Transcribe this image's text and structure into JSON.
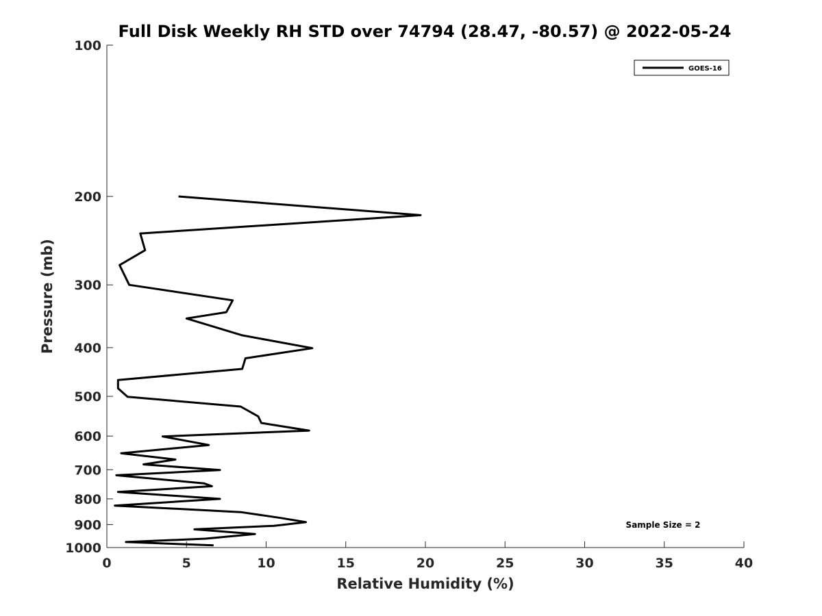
{
  "chart_data": {
    "type": "line",
    "title": "Full Disk Weekly RH STD over 74794 (28.47, -80.57) @ 2022-05-24",
    "xlabel": "Relative Humidity (%)",
    "ylabel": "Pressure (mb)",
    "xlim": [
      0,
      40
    ],
    "ylim": [
      100,
      1000
    ],
    "y_scale": "log",
    "y_reversed": true,
    "grid": false,
    "x_ticks": [
      0,
      5,
      10,
      15,
      20,
      25,
      30,
      35,
      40
    ],
    "y_ticks": [
      100,
      200,
      300,
      400,
      500,
      600,
      700,
      800,
      900,
      1000
    ],
    "x_tick_labels": [
      "0",
      "5",
      "10",
      "15",
      "20",
      "25",
      "30",
      "35",
      "40"
    ],
    "y_tick_labels": [
      "100",
      "200",
      "300",
      "400",
      "500",
      "600",
      "700",
      "800",
      "900",
      "1000"
    ],
    "legend_position": "top-right",
    "annotation": "Sample Size = 2",
    "series": [
      {
        "name": "GOES-16",
        "color": "#000000",
        "points": [
          [
            4.5,
            200
          ],
          [
            19.7,
            218
          ],
          [
            2.1,
            237
          ],
          [
            2.4,
            256
          ],
          [
            0.8,
            274
          ],
          [
            1.4,
            300
          ],
          [
            7.9,
            322
          ],
          [
            7.5,
            340
          ],
          [
            5.0,
            350
          ],
          [
            8.5,
            378
          ],
          [
            12.9,
            401
          ],
          [
            8.7,
            420
          ],
          [
            8.5,
            441
          ],
          [
            0.7,
            464
          ],
          [
            0.7,
            482
          ],
          [
            1.3,
            501
          ],
          [
            8.4,
            524
          ],
          [
            9.5,
            548
          ],
          [
            9.7,
            565
          ],
          [
            12.7,
            585
          ],
          [
            3.5,
            601
          ],
          [
            6.4,
            625
          ],
          [
            0.9,
            649
          ],
          [
            4.3,
            668
          ],
          [
            2.3,
            683
          ],
          [
            7.1,
            701
          ],
          [
            0.6,
            718
          ],
          [
            6.1,
            745
          ],
          [
            6.6,
            755
          ],
          [
            0.7,
            775
          ],
          [
            7.1,
            800
          ],
          [
            0.5,
            825
          ],
          [
            8.4,
            850
          ],
          [
            10.9,
            873
          ],
          [
            12.5,
            890
          ],
          [
            10.5,
            905
          ],
          [
            5.5,
            920
          ],
          [
            9.3,
            940
          ],
          [
            6.2,
            960
          ],
          [
            1.2,
            975
          ],
          [
            6.7,
            990
          ]
        ]
      }
    ]
  }
}
